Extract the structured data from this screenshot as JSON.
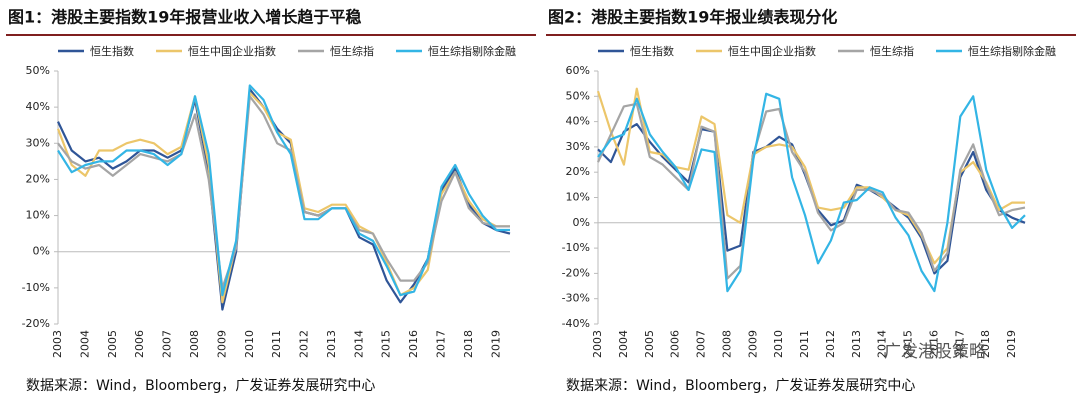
{
  "chart_data": [
    {
      "type": "line",
      "title": "图1：港股主要指数19年报营业收入增长趋于平稳",
      "source": "数据来源：Wind，Bloomberg，广发证券发展研究中心",
      "categories": [
        "2003",
        null,
        "2004",
        null,
        "2005",
        null,
        "2006",
        null,
        "2007",
        null,
        "2008",
        null,
        "2009",
        null,
        "2010",
        null,
        "2011",
        null,
        "2012",
        null,
        "2013",
        null,
        "2014",
        null,
        "2015",
        null,
        "2016",
        null,
        "2017",
        null,
        "2018",
        null,
        "2019",
        null
      ],
      "ylim": [
        -20,
        50
      ],
      "yticks": [
        {
          "value": -20,
          "label": "-20%"
        },
        {
          "value": -10,
          "label": "-10%"
        },
        {
          "value": 0,
          "label": "0%"
        },
        {
          "value": 10,
          "label": "10%"
        },
        {
          "value": 20,
          "label": "20%"
        },
        {
          "value": 30,
          "label": "30%"
        },
        {
          "value": 40,
          "label": "40%"
        },
        {
          "value": 50,
          "label": "50%"
        }
      ],
      "grid": false,
      "series": [
        {
          "name": "恒生指数",
          "color": "#2f5597",
          "values": [
            36,
            28,
            25,
            26,
            23,
            25,
            28,
            28,
            26,
            28,
            42,
            22,
            -16,
            0,
            45,
            40,
            34,
            30,
            11,
            10,
            12,
            12,
            4,
            2,
            -8,
            -14,
            -9,
            -2,
            17,
            23,
            13,
            8,
            6,
            5
          ]
        },
        {
          "name": "恒生中国企业指数",
          "color": "#ecc66a",
          "values": [
            34,
            24,
            21,
            28,
            28,
            30,
            31,
            30,
            27,
            29,
            43,
            24,
            -14,
            2,
            44,
            40,
            33,
            31,
            12,
            11,
            13,
            13,
            7,
            5,
            -3,
            -12,
            -10,
            -5,
            16,
            22,
            14,
            9,
            7,
            7
          ]
        },
        {
          "name": "恒生综指",
          "color": "#a5a5a5",
          "values": [
            30,
            25,
            23,
            24,
            21,
            24,
            27,
            26,
            25,
            27,
            38,
            20,
            -10,
            1,
            43,
            38,
            30,
            28,
            11,
            10,
            12,
            12,
            6,
            5,
            -2,
            -8,
            -8,
            -3,
            14,
            22,
            12,
            8,
            7,
            7
          ]
        },
        {
          "name": "恒生综指剔除金融",
          "color": "#33b5e5",
          "values": [
            28,
            22,
            24,
            25,
            25,
            28,
            28,
            27,
            24,
            27,
            43,
            27,
            -12,
            3,
            46,
            42,
            33,
            27,
            9,
            9,
            12,
            12,
            5,
            3,
            -4,
            -12,
            -11,
            -2,
            18,
            24,
            16,
            10,
            6,
            6
          ]
        }
      ]
    },
    {
      "type": "line",
      "title": "图2：港股主要指数19年报业绩表现分化",
      "source": "数据来源：Wind，Bloomberg，广发证券发展研究中心",
      "categories": [
        "2003",
        null,
        "2004",
        null,
        "2005",
        null,
        "2006",
        null,
        "2007",
        null,
        "2008",
        null,
        "2009",
        null,
        "2010",
        null,
        "2011",
        null,
        "2012",
        null,
        "2013",
        null,
        "2014",
        null,
        "2015",
        null,
        "2016",
        null,
        "2017",
        null,
        "2018",
        null,
        "2019",
        null
      ],
      "ylim": [
        -40,
        60
      ],
      "yticks": [
        {
          "value": -40,
          "label": "-40%"
        },
        {
          "value": -30,
          "label": "-30%"
        },
        {
          "value": -20,
          "label": "-20%"
        },
        {
          "value": -10,
          "label": "-10%"
        },
        {
          "value": 0,
          "label": "0%"
        },
        {
          "value": 10,
          "label": "10%"
        },
        {
          "value": 20,
          "label": "20%"
        },
        {
          "value": 30,
          "label": "30%"
        },
        {
          "value": 40,
          "label": "40%"
        },
        {
          "value": 50,
          "label": "50%"
        },
        {
          "value": 60,
          "label": "60%"
        }
      ],
      "grid": false,
      "series": [
        {
          "name": "恒生指数",
          "color": "#2f5597",
          "values": [
            29,
            24,
            36,
            39,
            32,
            26,
            21,
            16,
            37,
            36,
            -11,
            -9,
            28,
            30,
            34,
            31,
            19,
            5,
            -1,
            1,
            15,
            13,
            10,
            6,
            2,
            -6,
            -20,
            -15,
            18,
            28,
            13,
            5,
            2,
            0
          ]
        },
        {
          "name": "恒生中国企业指数",
          "color": "#ecc66a",
          "values": [
            52,
            36,
            23,
            53,
            28,
            27,
            22,
            21,
            42,
            39,
            3,
            0,
            27,
            30,
            31,
            30,
            22,
            6,
            5,
            6,
            14,
            14,
            10,
            5,
            3,
            -5,
            -16,
            -10,
            20,
            24,
            16,
            5,
            8,
            8
          ]
        },
        {
          "name": "恒生综指",
          "color": "#a5a5a5",
          "values": [
            24,
            35,
            46,
            47,
            26,
            23,
            18,
            13,
            38,
            36,
            -22,
            -17,
            27,
            44,
            45,
            28,
            20,
            4,
            -3,
            0,
            13,
            13,
            11,
            5,
            4,
            -4,
            -19,
            -12,
            21,
            31,
            15,
            3,
            5,
            6
          ]
        },
        {
          "name": "恒生综指剔除金融",
          "color": "#33b5e5",
          "values": [
            26,
            33,
            35,
            49,
            35,
            28,
            22,
            13,
            29,
            28,
            -27,
            -19,
            25,
            51,
            49,
            18,
            3,
            -16,
            -7,
            8,
            9,
            14,
            12,
            2,
            -5,
            -19,
            -27,
            0,
            42,
            50,
            21,
            7,
            -2,
            3
          ]
        }
      ]
    }
  ],
  "watermark": "广发港股策略"
}
